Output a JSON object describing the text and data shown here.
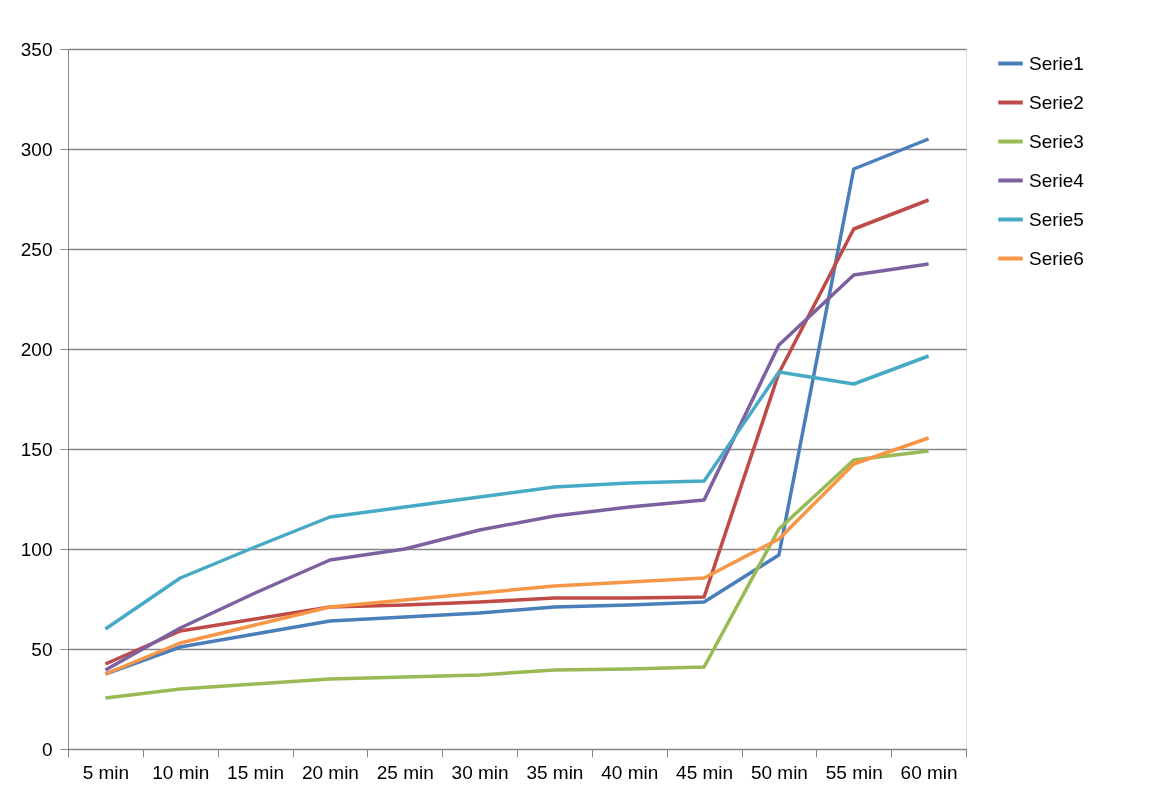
{
  "chart_data": {
    "type": "line",
    "categories": [
      "5 min",
      "10 min",
      "15 min",
      "20 min",
      "25 min",
      "30 min",
      "35 min",
      "40 min",
      "45 min",
      "50 min",
      "55 min",
      "60 min"
    ],
    "series": [
      {
        "name": "Serie1",
        "color": "#4a7ebb",
        "values": [
          37.5,
          51,
          57.5,
          64,
          66,
          68,
          71,
          72,
          73.5,
          97,
          290,
          305
        ]
      },
      {
        "name": "Serie2",
        "color": "#be4b48",
        "values": [
          42.5,
          59,
          65,
          71,
          72,
          73.5,
          75.5,
          75.5,
          76,
          188,
          260,
          274.5
        ]
      },
      {
        "name": "Serie3",
        "color": "#98b954",
        "values": [
          25.5,
          30,
          32.5,
          35,
          36,
          37,
          39.5,
          40,
          41,
          110,
          144.5,
          149
        ]
      },
      {
        "name": "Serie4",
        "color": "#7d60a0",
        "values": [
          39.5,
          60.5,
          78,
          94.5,
          100,
          109.5,
          116.5,
          121,
          124.5,
          202,
          237,
          242.5
        ]
      },
      {
        "name": "Serie5",
        "color": "#46aac5",
        "values": [
          60,
          85.5,
          101,
          116,
          121,
          126,
          131,
          133,
          134,
          188.5,
          182.5,
          196.5
        ]
      },
      {
        "name": "Serie6",
        "color": "#f79646",
        "values": [
          37.5,
          53,
          62,
          71,
          74.5,
          78,
          81.5,
          83.5,
          85.5,
          105,
          142.5,
          155.5
        ]
      }
    ],
    "ylim": [
      0,
      350
    ],
    "yticks": [
      0,
      50,
      100,
      150,
      200,
      250,
      300,
      350
    ],
    "grid": "y",
    "legend": "right",
    "marker": "none",
    "line_style": "solid"
  }
}
